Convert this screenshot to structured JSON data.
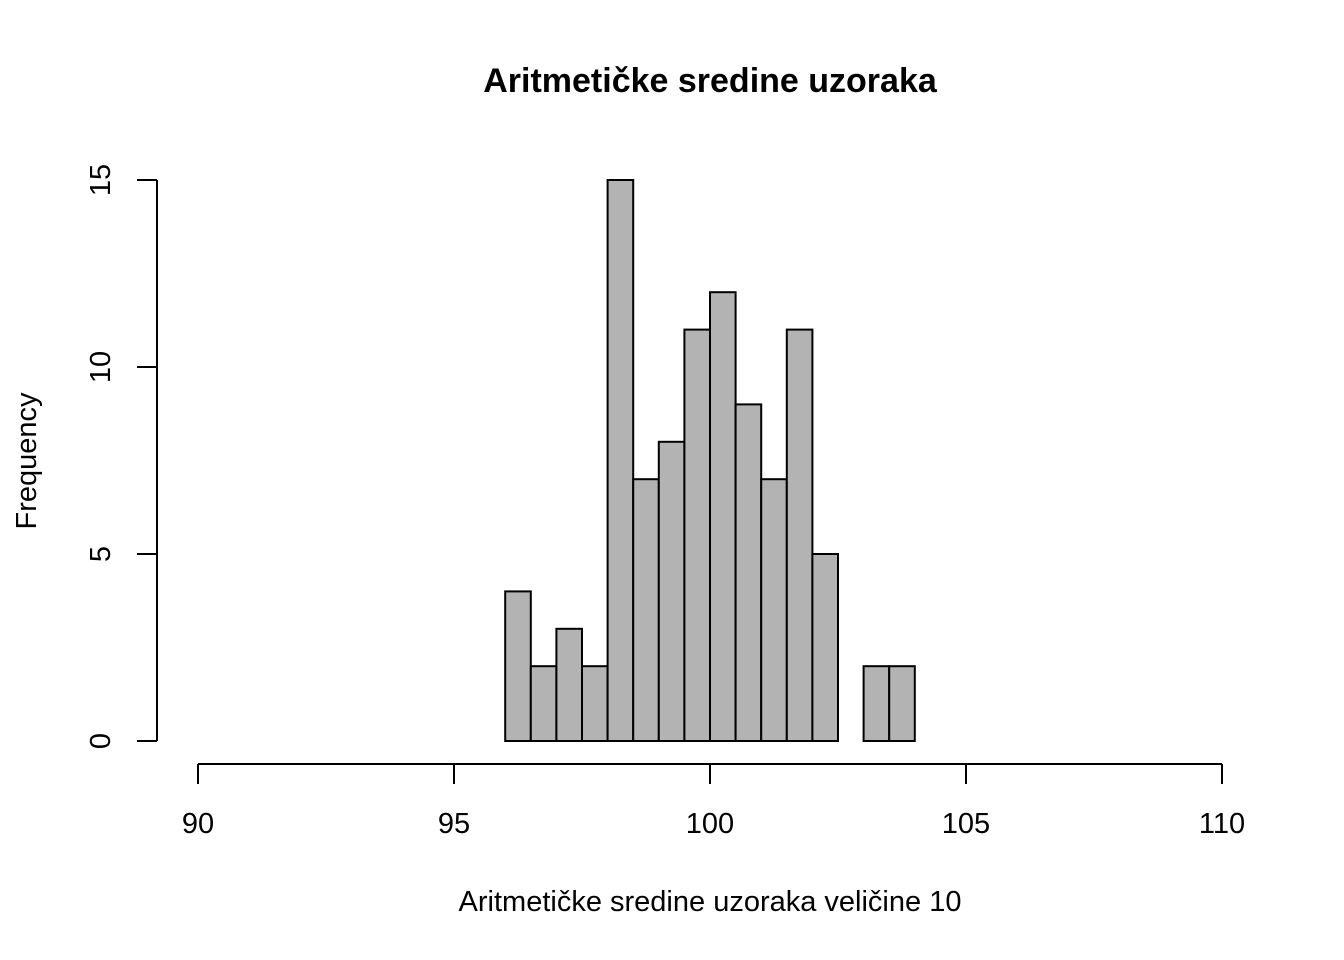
{
  "chart_data": {
    "type": "histogram",
    "title": "Aritmetičke sredine uzoraka",
    "x_label": "Aritmetičke sredine uzoraka veličine 10",
    "y_label": "Frequency",
    "bins": [
      96,
      96.5,
      97,
      97.5,
      98,
      98.5,
      99,
      99.5,
      100,
      100.5,
      101,
      101.5,
      102,
      102.5,
      103,
      103.5,
      104
    ],
    "values": [
      4,
      2,
      3,
      2,
      15,
      7,
      8,
      11,
      12,
      9,
      7,
      11,
      5,
      0,
      2,
      2
    ],
    "color": "#b3b3b3",
    "xlim": [
      90,
      110
    ],
    "xticks": [
      90,
      95,
      100,
      105,
      110
    ],
    "ylim": [
      0,
      15
    ],
    "yticks": [
      0,
      5,
      10,
      15
    ],
    "grid": false
  }
}
